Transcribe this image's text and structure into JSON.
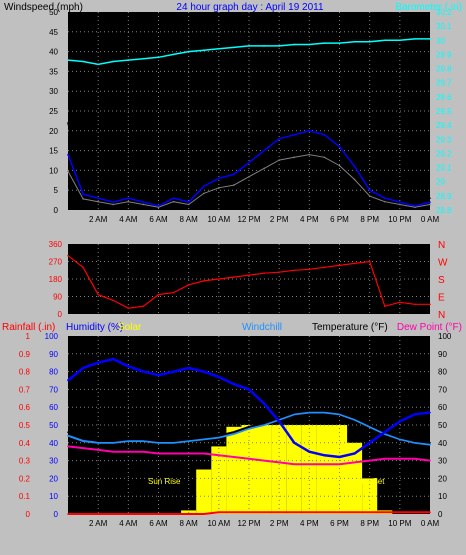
{
  "header": {
    "windspeed_label": "Windspeed (mph)",
    "title": "24 hour graph day : April 19 2011",
    "barometer_label": "Barometer (.in)"
  },
  "time_ticks": [
    "2 AM",
    "4 AM",
    "6 AM",
    "8 AM",
    "10 AM",
    "12 PM",
    "2 PM",
    "4 PM",
    "6 PM",
    "8 PM",
    "10 PM",
    "0 AM"
  ],
  "middle": {
    "compass_labels": [
      "N",
      "W",
      "S",
      "E",
      "N"
    ]
  },
  "bottom": {
    "rainfall_label": "Rainfall (.in)",
    "humidity_label": "Humidity (%)",
    "solar_label": "Solar",
    "windchill_label": "Windchill",
    "temperature_label": "Temperature (°F)",
    "dewpoint_label": "Dew Point (°F)",
    "sunrise_label": "Sun Rise",
    "sunset_label": "Sun Set"
  },
  "colors": {
    "background": "#c0c0c0",
    "plot_bg": "#000000",
    "grid": "#808080",
    "gust": "#000000",
    "wind": "#0000ff",
    "wind_low": "#808080",
    "barometer": "#00ffff",
    "direction": "#ff0000",
    "humidity": "#0000ff",
    "windchill": "#1e90ff",
    "temperature": "#000000",
    "dewpoint": "#ff00aa",
    "solar": "#ffff00",
    "rain": "#ff0000"
  },
  "chart_data": [
    {
      "type": "line",
      "x": [
        0,
        1,
        2,
        3,
        4,
        5,
        6,
        7,
        8,
        9,
        10,
        11,
        12,
        13,
        14,
        15,
        16,
        17,
        18,
        19,
        20,
        21,
        22,
        23,
        24
      ],
      "xticks": [
        "2 AM",
        "4 AM",
        "6 AM",
        "8 AM",
        "10 AM",
        "12 PM",
        "2 PM",
        "4 PM",
        "6 PM",
        "8 PM",
        "10 PM",
        "0 AM"
      ],
      "y_left_ticks": [
        0,
        5,
        10,
        15,
        20,
        25,
        30,
        35,
        40,
        45,
        50
      ],
      "y_right_ticks": [
        28.8,
        28.9,
        29,
        29.1,
        29.2,
        29.3,
        29.4,
        29.5,
        29.6,
        29.7,
        29.8,
        29.9,
        30,
        30.1,
        30.2
      ],
      "ylabel_left": "Windspeed (mph)",
      "ylabel_right": "Barometer (.in)",
      "series": [
        {
          "name": "Gust",
          "axis": "left",
          "values": [
            22,
            6,
            4,
            3,
            5,
            3,
            1,
            6,
            3,
            10,
            12,
            13,
            18,
            24,
            27,
            28,
            29,
            27,
            24,
            17,
            8,
            4,
            3,
            2,
            3
          ]
        },
        {
          "name": "Windspeed",
          "axis": "left",
          "values": [
            14,
            4,
            3,
            2,
            3,
            2,
            1,
            3,
            2,
            6,
            8,
            9,
            12,
            15,
            18,
            19,
            20,
            19,
            16,
            11,
            5,
            3,
            2,
            1,
            2
          ]
        },
        {
          "name": "Barometer",
          "axis": "right",
          "values": [
            29.86,
            29.85,
            29.83,
            29.85,
            29.86,
            29.87,
            29.88,
            29.9,
            29.92,
            29.93,
            29.94,
            29.95,
            29.96,
            29.96,
            29.96,
            29.97,
            29.97,
            29.98,
            29.98,
            29.99,
            29.99,
            30,
            30,
            30.01,
            30.01
          ]
        }
      ],
      "ylim_left": [
        0,
        50
      ],
      "ylim_right": [
        28.8,
        30.2
      ],
      "grid": true
    },
    {
      "type": "line",
      "title": "Wind direction",
      "x": [
        0,
        1,
        2,
        3,
        4,
        5,
        6,
        7,
        8,
        9,
        10,
        11,
        12,
        13,
        14,
        15,
        16,
        17,
        18,
        19,
        20,
        21,
        22,
        23,
        24
      ],
      "xticks": [],
      "yticks": [
        0,
        90,
        180,
        270,
        360
      ],
      "series": [
        {
          "name": "Direction",
          "values": [
            300,
            240,
            100,
            70,
            30,
            40,
            100,
            110,
            150,
            170,
            180,
            190,
            200,
            210,
            215,
            225,
            230,
            240,
            250,
            260,
            270,
            40,
            60,
            50,
            50
          ]
        }
      ],
      "ylim": [
        0,
        360
      ],
      "grid": true
    },
    {
      "type": "line",
      "x": [
        0,
        1,
        2,
        3,
        4,
        5,
        6,
        7,
        8,
        9,
        10,
        11,
        12,
        13,
        14,
        15,
        16,
        17,
        18,
        19,
        20,
        21,
        22,
        23,
        24
      ],
      "xticks": [
        "2 AM",
        "4 AM",
        "6 AM",
        "8 AM",
        "10 AM",
        "12 PM",
        "2 PM",
        "4 PM",
        "6 PM",
        "8 PM",
        "10 PM",
        "0 AM"
      ],
      "y_left_ticks_rain": [
        0,
        0.1,
        0.2,
        0.3,
        0.4,
        0.5,
        0.6,
        0.7,
        0.8,
        0.9,
        1
      ],
      "y_left_ticks_humidity": [
        0,
        10,
        20,
        30,
        40,
        50,
        60,
        70,
        80,
        90,
        100
      ],
      "y_right_ticks": [
        0,
        10,
        20,
        30,
        40,
        50,
        60,
        70,
        80,
        90,
        100
      ],
      "series": [
        {
          "name": "Humidity",
          "axis": "humidity",
          "values": [
            75,
            82,
            85,
            87,
            83,
            80,
            78,
            80,
            82,
            80,
            77,
            73,
            70,
            62,
            52,
            40,
            35,
            33,
            32,
            34,
            40,
            46,
            52,
            56,
            57
          ]
        },
        {
          "name": "Temperature",
          "axis": "right",
          "values": [
            46,
            43,
            41,
            41,
            42,
            42,
            41,
            41,
            42,
            43,
            44,
            46,
            49,
            51,
            54,
            57,
            58,
            58,
            57,
            54,
            50,
            46,
            43,
            41,
            40
          ]
        },
        {
          "name": "Windchill",
          "axis": "right",
          "values": [
            44,
            41,
            40,
            40,
            41,
            41,
            40,
            40,
            41,
            42,
            43,
            45,
            48,
            50,
            53,
            56,
            57,
            57,
            56,
            53,
            49,
            45,
            42,
            40,
            39
          ]
        },
        {
          "name": "Dew Point",
          "axis": "right",
          "values": [
            38,
            37,
            36,
            35,
            35,
            35,
            34,
            34,
            34,
            34,
            33,
            32,
            31,
            30,
            29,
            28,
            28,
            28,
            28,
            29,
            30,
            31,
            31,
            31,
            30
          ]
        },
        {
          "name": "Solar",
          "axis": "right",
          "values": [
            0,
            0,
            0,
            0,
            0,
            0,
            0,
            0,
            2,
            25,
            38,
            49,
            50,
            50,
            50,
            50,
            50,
            50,
            50,
            40,
            20,
            2,
            0,
            0,
            0
          ]
        },
        {
          "name": "Rainfall",
          "axis": "rain",
          "values": [
            0,
            0,
            0,
            0,
            0,
            0,
            0,
            0,
            0,
            0,
            0.01,
            0.01,
            0.01,
            0.01,
            0.01,
            0.01,
            0.01,
            0.01,
            0.01,
            0.01,
            0.01,
            0.01,
            0.01,
            0.01,
            0.01
          ]
        }
      ],
      "ylim_rain": [
        0,
        1
      ],
      "ylim_humidity": [
        0,
        100
      ],
      "ylim_right": [
        0,
        100
      ],
      "grid": true
    }
  ]
}
